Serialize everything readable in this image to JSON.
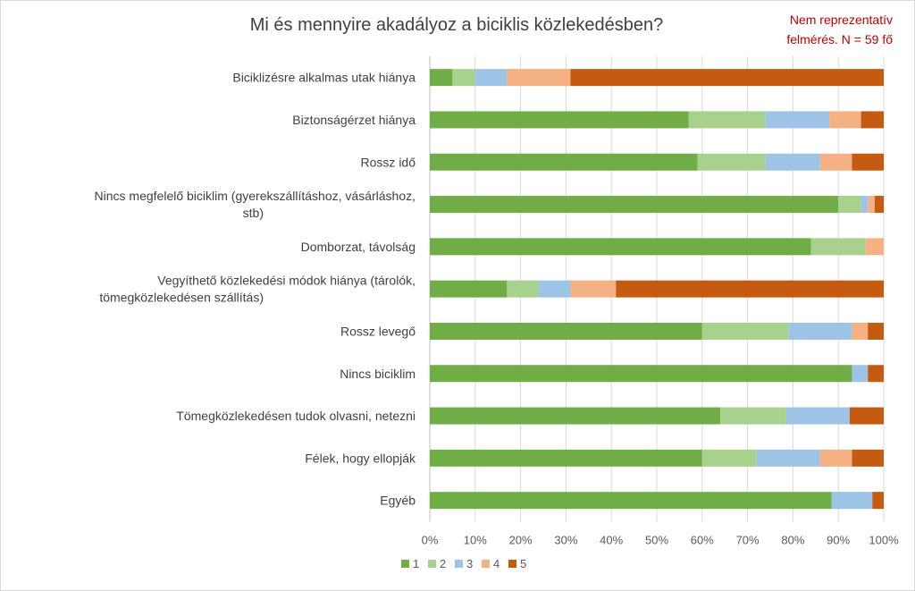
{
  "chart_data": {
    "type": "bar",
    "orientation": "horizontal",
    "stacked": "percent",
    "title": "Mi és mennyire akadályoz a biciklis közlekedésben?",
    "annotation": "Nem reprezentatív\nfelmérés. N = 59 fő",
    "categories": [
      "Biciklizésre alkalmas utak hiánya",
      "Biztonságérzet hiánya",
      "Rossz idő",
      "Nincs megfelelő biciklim (gyerekszállításhoz, vásárláshoz, stb)",
      "Domborzat, távolság",
      "Vegyíthető közlekedési módok hiánya (tárolók, tömegközlekedésen szállítás)",
      "Rossz levegő",
      "Nincs biciklim",
      "Tömegközlekedésen tudok olvasni, netezni",
      "Félek, hogy ellopják",
      "Egyéb"
    ],
    "series": [
      {
        "name": "1",
        "color": "#70ad47",
        "values": [
          5,
          57,
          59,
          90,
          84,
          17,
          60,
          93,
          64,
          60,
          88.5
        ]
      },
      {
        "name": "2",
        "color": "#a9d18e",
        "values": [
          5,
          17,
          15,
          5,
          12,
          7,
          19,
          0,
          14.5,
          12,
          0
        ]
      },
      {
        "name": "3",
        "color": "#9dc3e6",
        "values": [
          7,
          14,
          12,
          1.5,
          0,
          7,
          14,
          3.5,
          14,
          14,
          9
        ]
      },
      {
        "name": "4",
        "color": "#f4b183",
        "values": [
          14,
          7,
          7,
          1.5,
          4,
          10,
          3.5,
          0,
          0,
          7,
          0
        ]
      },
      {
        "name": "5",
        "color": "#c55a11",
        "values": [
          69,
          5,
          7,
          2,
          0,
          59,
          3.5,
          3.5,
          7.5,
          7,
          2.5
        ]
      }
    ],
    "xlim": [
      0,
      100
    ],
    "xticks": [
      "0%",
      "10%",
      "20%",
      "30%",
      "40%",
      "50%",
      "60%",
      "70%",
      "80%",
      "90%",
      "100%"
    ],
    "grid": true,
    "legend_position": "bottom"
  }
}
